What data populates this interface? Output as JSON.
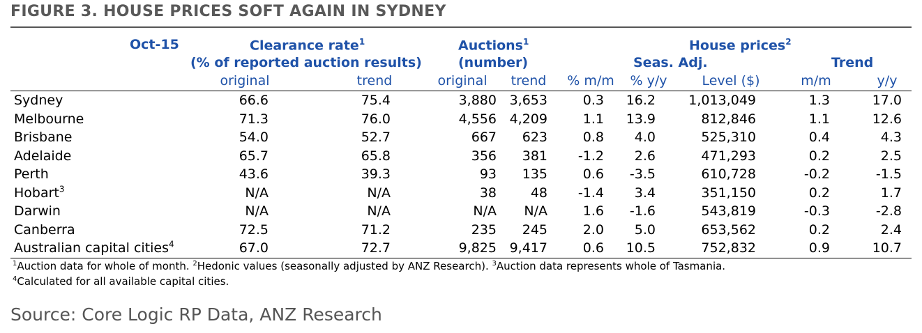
{
  "title": "FIGURE 3. HOUSE PRICES SOFT AGAIN IN SYDNEY",
  "chart_data": {
    "type": "table",
    "period": "Oct-15",
    "group_headers": {
      "clearance": {
        "line1": "Clearance rate",
        "sup": "1",
        "line2": "(% of reported auction results)"
      },
      "auctions": {
        "line1": "Auctions",
        "sup": "1",
        "line2": "(number)"
      },
      "house_prices": {
        "line1": "House prices",
        "sup": "2"
      },
      "seas_adj": "Seas. Adj.",
      "trend": "Trend"
    },
    "columns": [
      "original",
      "trend",
      "original",
      "trend",
      "% m/m",
      "% y/y",
      "Level ($)",
      "m/m",
      "y/y"
    ],
    "rows": [
      {
        "name": "Sydney",
        "sup": "",
        "values": [
          "66.6",
          "75.4",
          "3,880",
          "3,653",
          "0.3",
          "16.2",
          "1,013,049",
          "1.3",
          "17.0"
        ]
      },
      {
        "name": "Melbourne",
        "sup": "",
        "values": [
          "71.3",
          "76.0",
          "4,556",
          "4,209",
          "1.1",
          "13.9",
          "812,846",
          "1.1",
          "12.6"
        ]
      },
      {
        "name": "Brisbane",
        "sup": "",
        "values": [
          "54.0",
          "52.7",
          "667",
          "623",
          "0.8",
          "4.0",
          "525,310",
          "0.4",
          "4.3"
        ]
      },
      {
        "name": "Adelaide",
        "sup": "",
        "values": [
          "65.7",
          "65.8",
          "356",
          "381",
          "-1.2",
          "2.6",
          "471,293",
          "0.2",
          "2.5"
        ]
      },
      {
        "name": "Perth",
        "sup": "",
        "values": [
          "43.6",
          "39.3",
          "93",
          "135",
          "0.6",
          "-3.5",
          "610,728",
          "-0.2",
          "-1.5"
        ]
      },
      {
        "name": "Hobart",
        "sup": "3",
        "values": [
          "N/A",
          "N/A",
          "38",
          "48",
          "-1.4",
          "3.4",
          "351,150",
          "0.2",
          "1.7"
        ]
      },
      {
        "name": "Darwin",
        "sup": "",
        "values": [
          "N/A",
          "N/A",
          "N/A",
          "N/A",
          "1.6",
          "-1.6",
          "543,819",
          "-0.3",
          "-2.8"
        ]
      },
      {
        "name": "Canberra",
        "sup": "",
        "values": [
          "72.5",
          "71.2",
          "235",
          "245",
          "2.0",
          "5.0",
          "653,562",
          "0.2",
          "2.4"
        ]
      },
      {
        "name": "Australian capital cities",
        "sup": "4",
        "values": [
          "67.0",
          "72.7",
          "9,825",
          "9,417",
          "0.6",
          "10.5",
          "752,832",
          "0.9",
          "10.7"
        ]
      }
    ],
    "footnotes": [
      [
        {
          "sup": "1",
          "text": "Auction data for whole of month. "
        },
        {
          "sup": "2",
          "text": "Hedonic values (seasonally adjusted by ANZ Research). "
        },
        {
          "sup": "3",
          "text": "Auction data represents whole of Tasmania."
        }
      ],
      [
        {
          "sup": "4",
          "text": "Calculated for all available capital cities."
        }
      ]
    ]
  },
  "source": "Source: Core Logic RP Data, ANZ Research"
}
